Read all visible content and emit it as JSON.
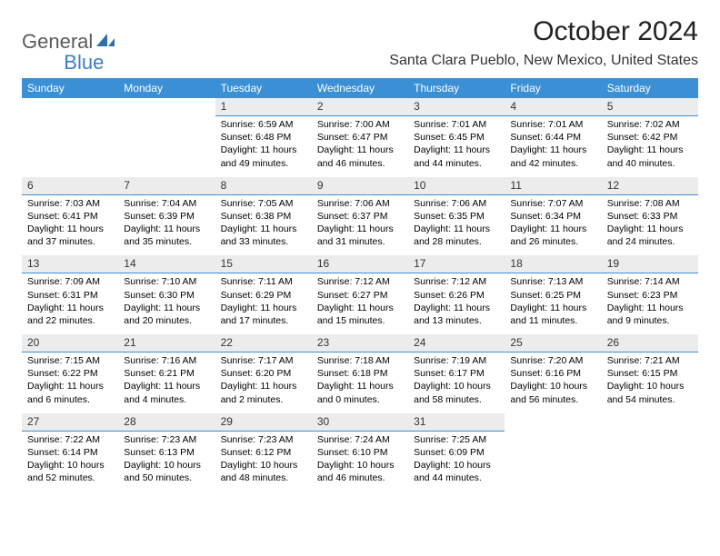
{
  "logo": {
    "text1": "General",
    "text2": "Blue"
  },
  "title": "October 2024",
  "location": "Santa Clara Pueblo, New Mexico, United States",
  "weekdays": [
    "Sunday",
    "Monday",
    "Tuesday",
    "Wednesday",
    "Thursday",
    "Friday",
    "Saturday"
  ],
  "accent_color": "#3b8fd4",
  "daynum_bg": "#ececec",
  "weeks": [
    {
      "nums": [
        "",
        "",
        "1",
        "2",
        "3",
        "4",
        "5"
      ],
      "cells": [
        {
          "sunrise": "",
          "sunset": "",
          "daylight": ""
        },
        {
          "sunrise": "",
          "sunset": "",
          "daylight": ""
        },
        {
          "sunrise": "Sunrise: 6:59 AM",
          "sunset": "Sunset: 6:48 PM",
          "daylight": "Daylight: 11 hours and 49 minutes."
        },
        {
          "sunrise": "Sunrise: 7:00 AM",
          "sunset": "Sunset: 6:47 PM",
          "daylight": "Daylight: 11 hours and 46 minutes."
        },
        {
          "sunrise": "Sunrise: 7:01 AM",
          "sunset": "Sunset: 6:45 PM",
          "daylight": "Daylight: 11 hours and 44 minutes."
        },
        {
          "sunrise": "Sunrise: 7:01 AM",
          "sunset": "Sunset: 6:44 PM",
          "daylight": "Daylight: 11 hours and 42 minutes."
        },
        {
          "sunrise": "Sunrise: 7:02 AM",
          "sunset": "Sunset: 6:42 PM",
          "daylight": "Daylight: 11 hours and 40 minutes."
        }
      ]
    },
    {
      "nums": [
        "6",
        "7",
        "8",
        "9",
        "10",
        "11",
        "12"
      ],
      "cells": [
        {
          "sunrise": "Sunrise: 7:03 AM",
          "sunset": "Sunset: 6:41 PM",
          "daylight": "Daylight: 11 hours and 37 minutes."
        },
        {
          "sunrise": "Sunrise: 7:04 AM",
          "sunset": "Sunset: 6:39 PM",
          "daylight": "Daylight: 11 hours and 35 minutes."
        },
        {
          "sunrise": "Sunrise: 7:05 AM",
          "sunset": "Sunset: 6:38 PM",
          "daylight": "Daylight: 11 hours and 33 minutes."
        },
        {
          "sunrise": "Sunrise: 7:06 AM",
          "sunset": "Sunset: 6:37 PM",
          "daylight": "Daylight: 11 hours and 31 minutes."
        },
        {
          "sunrise": "Sunrise: 7:06 AM",
          "sunset": "Sunset: 6:35 PM",
          "daylight": "Daylight: 11 hours and 28 minutes."
        },
        {
          "sunrise": "Sunrise: 7:07 AM",
          "sunset": "Sunset: 6:34 PM",
          "daylight": "Daylight: 11 hours and 26 minutes."
        },
        {
          "sunrise": "Sunrise: 7:08 AM",
          "sunset": "Sunset: 6:33 PM",
          "daylight": "Daylight: 11 hours and 24 minutes."
        }
      ]
    },
    {
      "nums": [
        "13",
        "14",
        "15",
        "16",
        "17",
        "18",
        "19"
      ],
      "cells": [
        {
          "sunrise": "Sunrise: 7:09 AM",
          "sunset": "Sunset: 6:31 PM",
          "daylight": "Daylight: 11 hours and 22 minutes."
        },
        {
          "sunrise": "Sunrise: 7:10 AM",
          "sunset": "Sunset: 6:30 PM",
          "daylight": "Daylight: 11 hours and 20 minutes."
        },
        {
          "sunrise": "Sunrise: 7:11 AM",
          "sunset": "Sunset: 6:29 PM",
          "daylight": "Daylight: 11 hours and 17 minutes."
        },
        {
          "sunrise": "Sunrise: 7:12 AM",
          "sunset": "Sunset: 6:27 PM",
          "daylight": "Daylight: 11 hours and 15 minutes."
        },
        {
          "sunrise": "Sunrise: 7:12 AM",
          "sunset": "Sunset: 6:26 PM",
          "daylight": "Daylight: 11 hours and 13 minutes."
        },
        {
          "sunrise": "Sunrise: 7:13 AM",
          "sunset": "Sunset: 6:25 PM",
          "daylight": "Daylight: 11 hours and 11 minutes."
        },
        {
          "sunrise": "Sunrise: 7:14 AM",
          "sunset": "Sunset: 6:23 PM",
          "daylight": "Daylight: 11 hours and 9 minutes."
        }
      ]
    },
    {
      "nums": [
        "20",
        "21",
        "22",
        "23",
        "24",
        "25",
        "26"
      ],
      "cells": [
        {
          "sunrise": "Sunrise: 7:15 AM",
          "sunset": "Sunset: 6:22 PM",
          "daylight": "Daylight: 11 hours and 6 minutes."
        },
        {
          "sunrise": "Sunrise: 7:16 AM",
          "sunset": "Sunset: 6:21 PM",
          "daylight": "Daylight: 11 hours and 4 minutes."
        },
        {
          "sunrise": "Sunrise: 7:17 AM",
          "sunset": "Sunset: 6:20 PM",
          "daylight": "Daylight: 11 hours and 2 minutes."
        },
        {
          "sunrise": "Sunrise: 7:18 AM",
          "sunset": "Sunset: 6:18 PM",
          "daylight": "Daylight: 11 hours and 0 minutes."
        },
        {
          "sunrise": "Sunrise: 7:19 AM",
          "sunset": "Sunset: 6:17 PM",
          "daylight": "Daylight: 10 hours and 58 minutes."
        },
        {
          "sunrise": "Sunrise: 7:20 AM",
          "sunset": "Sunset: 6:16 PM",
          "daylight": "Daylight: 10 hours and 56 minutes."
        },
        {
          "sunrise": "Sunrise: 7:21 AM",
          "sunset": "Sunset: 6:15 PM",
          "daylight": "Daylight: 10 hours and 54 minutes."
        }
      ]
    },
    {
      "nums": [
        "27",
        "28",
        "29",
        "30",
        "31",
        "",
        ""
      ],
      "cells": [
        {
          "sunrise": "Sunrise: 7:22 AM",
          "sunset": "Sunset: 6:14 PM",
          "daylight": "Daylight: 10 hours and 52 minutes."
        },
        {
          "sunrise": "Sunrise: 7:23 AM",
          "sunset": "Sunset: 6:13 PM",
          "daylight": "Daylight: 10 hours and 50 minutes."
        },
        {
          "sunrise": "Sunrise: 7:23 AM",
          "sunset": "Sunset: 6:12 PM",
          "daylight": "Daylight: 10 hours and 48 minutes."
        },
        {
          "sunrise": "Sunrise: 7:24 AM",
          "sunset": "Sunset: 6:10 PM",
          "daylight": "Daylight: 10 hours and 46 minutes."
        },
        {
          "sunrise": "Sunrise: 7:25 AM",
          "sunset": "Sunset: 6:09 PM",
          "daylight": "Daylight: 10 hours and 44 minutes."
        },
        {
          "sunrise": "",
          "sunset": "",
          "daylight": ""
        },
        {
          "sunrise": "",
          "sunset": "",
          "daylight": ""
        }
      ]
    }
  ]
}
